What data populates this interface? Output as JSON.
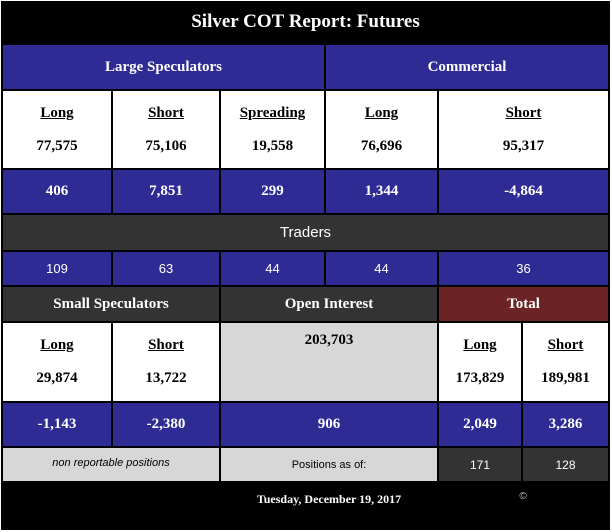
{
  "title": "Silver COT Report: Futures",
  "groups": {
    "large_speculators": "Large Speculators",
    "commercial": "Commercial",
    "small_speculators": "Small Speculators",
    "open_interest": "Open Interest",
    "total": "Total",
    "traders": "Traders"
  },
  "large_speculators": {
    "long": {
      "label": "Long",
      "value": "77,575",
      "change": "406",
      "traders": "109"
    },
    "short": {
      "label": "Short",
      "value": "75,106",
      "change": "7,851",
      "traders": "63"
    },
    "spreading": {
      "label": "Spreading",
      "value": "19,558",
      "change": "299",
      "traders": "44"
    }
  },
  "commercial": {
    "long": {
      "label": "Long",
      "value": "76,696",
      "change": "1,344",
      "traders": "44"
    },
    "short": {
      "label": "Short",
      "value": "95,317",
      "change": "-4,864",
      "traders": "36"
    }
  },
  "small_speculators": {
    "long": {
      "label": "Long",
      "value": "29,874",
      "change": "-1,143"
    },
    "short": {
      "label": "Short",
      "value": "13,722",
      "change": "-2,380"
    },
    "note": "non reportable positions"
  },
  "open_interest": {
    "value": "203,703",
    "change": "906",
    "positions_as_of": "Positions as of:"
  },
  "total": {
    "long": {
      "label": "Long",
      "value": "173,829",
      "change": "2,049",
      "traders": "171"
    },
    "short": {
      "label": "Short",
      "value": "189,981",
      "change": "3,286",
      "traders": "128"
    }
  },
  "footer": {
    "date": "Tuesday, December 19, 2017",
    "copyright": "©"
  },
  "colors": {
    "blue": "#2f2b95",
    "dark": "#333333",
    "darkred": "#6b2323",
    "gray": "#d7d7d7",
    "black": "#000000"
  }
}
